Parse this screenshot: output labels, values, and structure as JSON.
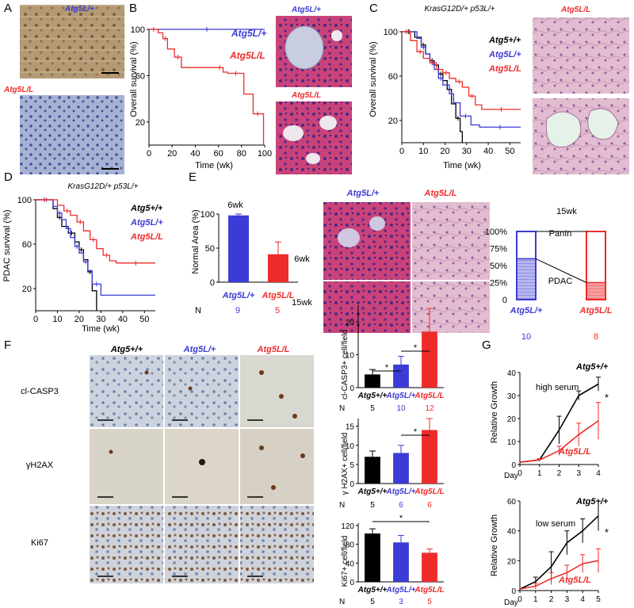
{
  "colors": {
    "wt": "#000000",
    "het": "#3b3bd6",
    "ko": "#ee2b2b"
  },
  "genotypes": {
    "wt": "Atg5+/+",
    "het": "Atg5L/+",
    "ko": "Atg5L/L"
  },
  "panels": {
    "A": {
      "letter": "A"
    },
    "B": {
      "letter": "B",
      "ylabel": "Overall survival (%)",
      "xlabel": "Time (wk)"
    },
    "C": {
      "letter": "C",
      "title": "KrasG12D/+ p53L/+",
      "ylabel": "Overall survival (%)",
      "xlabel": "Time (wk)"
    },
    "D": {
      "letter": "D",
      "title": "KrasG12D/+ p53L/+",
      "ylabel": "PDAC survival (%)",
      "xlabel": "Time (wk)"
    },
    "E": {
      "letter": "E",
      "chart_title": "6wk",
      "ylabel": "Normal Area (%)",
      "n_label": "N",
      "n_het": "9",
      "n_ko": "5",
      "row_6wk": "6wk",
      "row_15wk": "15wk",
      "stack_title": "15wk",
      "panin": "PanIn",
      "pdac": "PDAC",
      "stack_n_het": "10",
      "stack_n_ko": "8"
    },
    "F": {
      "letter": "F",
      "row_casp3": "cl-CASP3",
      "row_h2ax": "γH2AX",
      "row_ki67": "Ki67",
      "n_label": "N",
      "ylabel_casp3": "cl-CASP3+ cell/field",
      "ylabel_h2ax": "γ H2AX+ cell/field",
      "ylabel_ki67": "Ki67+ cell/field",
      "n_casp3": [
        "5",
        "10",
        "12"
      ],
      "n_h2ax": [
        "5",
        "6",
        "6"
      ],
      "n_ki67": [
        "5",
        "3",
        "5"
      ]
    },
    "G": {
      "letter": "G",
      "ylabel": "Relative Growth",
      "xlabel": "Day",
      "high": "high serum",
      "low": "low serum"
    }
  },
  "chart_data": [
    {
      "id": "B",
      "type": "line",
      "xlim": [
        0,
        100
      ],
      "ylim": [
        0,
        100
      ],
      "xticks": [
        0,
        20,
        40,
        60,
        80,
        100
      ],
      "yticks": [
        20,
        60,
        100
      ],
      "series": [
        {
          "name": "Atg5L/+",
          "color": "het",
          "x": [
            0,
            100
          ],
          "y": [
            100,
            100
          ]
        },
        {
          "name": "Atg5L/L",
          "color": "ko",
          "x": [
            0,
            8,
            12,
            16,
            22,
            28,
            58,
            64,
            68,
            82,
            90,
            98,
            99
          ],
          "y": [
            100,
            97,
            92,
            83,
            76,
            67,
            67,
            63,
            62,
            44,
            27,
            27,
            0
          ]
        }
      ]
    },
    {
      "id": "C",
      "type": "line",
      "xlim": [
        0,
        55
      ],
      "ylim": [
        0,
        100
      ],
      "xticks": [
        0,
        10,
        20,
        30,
        40,
        50
      ],
      "yticks": [
        20,
        60,
        100
      ],
      "series": [
        {
          "name": "Atg5+/+",
          "color": "wt",
          "x": [
            0,
            6,
            9,
            11,
            13,
            15,
            17,
            19,
            21,
            23,
            25,
            27,
            28
          ],
          "y": [
            100,
            95,
            88,
            80,
            74,
            70,
            62,
            56,
            48,
            35,
            22,
            10,
            0
          ]
        },
        {
          "name": "Atg5L/+",
          "color": "het",
          "x": [
            0,
            7,
            9,
            11,
            13,
            15,
            17,
            19,
            22,
            24,
            27,
            32,
            36,
            55
          ],
          "y": [
            100,
            94,
            86,
            80,
            72,
            66,
            58,
            52,
            44,
            36,
            24,
            16,
            14,
            14
          ]
        },
        {
          "name": "Atg5L/L",
          "color": "ko",
          "x": [
            0,
            4,
            7,
            10,
            13,
            16,
            19,
            22,
            25,
            28,
            31,
            34,
            37,
            55
          ],
          "y": [
            100,
            92,
            82,
            76,
            72,
            66,
            63,
            58,
            55,
            50,
            42,
            34,
            30,
            30
          ]
        }
      ]
    },
    {
      "id": "D",
      "type": "line",
      "xlim": [
        0,
        55
      ],
      "ylim": [
        0,
        100
      ],
      "xticks": [
        0,
        10,
        20,
        30,
        40,
        50
      ],
      "yticks": [
        20,
        60,
        100
      ],
      "series": [
        {
          "name": "Atg5+/+",
          "color": "wt",
          "x": [
            0,
            8,
            10,
            12,
            15,
            18,
            20,
            22,
            24,
            26,
            28
          ],
          "y": [
            100,
            92,
            84,
            76,
            70,
            62,
            55,
            46,
            35,
            18,
            0
          ]
        },
        {
          "name": "Atg5L/+",
          "color": "het",
          "x": [
            0,
            8,
            10,
            12,
            14,
            16,
            18,
            20,
            22,
            24,
            26,
            30,
            55
          ],
          "y": [
            100,
            94,
            88,
            82,
            74,
            66,
            58,
            52,
            44,
            36,
            24,
            14,
            14
          ]
        },
        {
          "name": "Atg5L/L",
          "color": "ko",
          "x": [
            0,
            10,
            13,
            16,
            19,
            22,
            25,
            28,
            31,
            34,
            37,
            55
          ],
          "y": [
            100,
            95,
            90,
            86,
            80,
            72,
            64,
            56,
            50,
            45,
            43,
            43
          ]
        }
      ]
    },
    {
      "id": "E",
      "type": "bar",
      "ylim": [
        0,
        100
      ],
      "yticks": [
        0,
        50,
        100
      ],
      "categories": [
        "Atg5L/+",
        "Atg5L/L"
      ],
      "colors": [
        "het",
        "ko"
      ],
      "values": [
        98,
        41
      ],
      "errors": [
        2,
        18
      ]
    },
    {
      "id": "E15",
      "type": "bar",
      "stacked": true,
      "ylim": [
        0,
        100
      ],
      "yticks": [
        "0",
        "25%",
        "50%",
        "75%",
        "100%"
      ],
      "categories": [
        "Atg5L/+",
        "Atg5L/L"
      ],
      "colors": [
        "het",
        "ko"
      ],
      "series": [
        {
          "name": "PDAC",
          "values": [
            60,
            25
          ]
        },
        {
          "name": "PanIn",
          "values": [
            40,
            75
          ]
        }
      ]
    },
    {
      "id": "F1",
      "type": "bar",
      "ylim": [
        0,
        25
      ],
      "yticks": [
        0,
        10,
        20
      ],
      "categories": [
        "Atg5+/+",
        "Atg5L/+",
        "Atg5L/L"
      ],
      "colors": [
        "wt",
        "het",
        "ko"
      ],
      "values": [
        4,
        7,
        17
      ],
      "errors": [
        1.5,
        2.5,
        7
      ]
    },
    {
      "id": "F2",
      "type": "bar",
      "ylim": [
        0,
        17
      ],
      "yticks": [
        0,
        5,
        10,
        15
      ],
      "categories": [
        "Atg5+/+",
        "Atg5L/+",
        "Atg5L/L"
      ],
      "colors": [
        "wt",
        "het",
        "ko"
      ],
      "values": [
        7,
        8,
        14
      ],
      "errors": [
        1.5,
        2,
        3
      ]
    },
    {
      "id": "F3",
      "type": "bar",
      "ylim": [
        0,
        125
      ],
      "yticks": [
        0,
        40,
        80,
        120
      ],
      "categories": [
        "Atg5+/+",
        "Atg5L/+",
        "Atg5L/L"
      ],
      "colors": [
        "wt",
        "het",
        "ko"
      ],
      "values": [
        103,
        84,
        62
      ],
      "errors": [
        10,
        15,
        8
      ]
    },
    {
      "id": "G1",
      "type": "line",
      "xlim": [
        0,
        4
      ],
      "ylim": [
        0,
        40
      ],
      "xticks": [
        0,
        1,
        2,
        3,
        4
      ],
      "yticks": [
        0,
        10,
        20,
        30,
        40
      ],
      "series": [
        {
          "name": "Atg5+/+",
          "color": "wt",
          "x": [
            0,
            1,
            2,
            3,
            4
          ],
          "y": [
            1,
            2,
            15,
            30,
            35
          ],
          "err": [
            0,
            0.5,
            6,
            2,
            3
          ]
        },
        {
          "name": "Atg5L/L",
          "color": "ko",
          "x": [
            0,
            1,
            2,
            3,
            4
          ],
          "y": [
            1,
            2,
            6,
            13,
            19
          ],
          "err": [
            0,
            0.5,
            2,
            5,
            8
          ]
        }
      ]
    },
    {
      "id": "G2",
      "type": "line",
      "xlim": [
        0,
        5
      ],
      "ylim": [
        0,
        60
      ],
      "xticks": [
        0,
        1,
        2,
        3,
        4,
        5
      ],
      "yticks": [
        0,
        20,
        40,
        60
      ],
      "series": [
        {
          "name": "Atg5+/+",
          "color": "wt",
          "x": [
            0,
            1,
            2,
            3,
            4,
            5
          ],
          "y": [
            1,
            6,
            16,
            32,
            40,
            50
          ],
          "err": [
            0,
            3,
            10,
            8,
            8,
            10
          ]
        },
        {
          "name": "Atg5L/L",
          "color": "ko",
          "x": [
            0,
            1,
            2,
            3,
            4,
            5
          ],
          "y": [
            1,
            3,
            8,
            12,
            18,
            20
          ],
          "err": [
            0,
            2,
            4,
            5,
            6,
            8
          ]
        }
      ]
    }
  ]
}
